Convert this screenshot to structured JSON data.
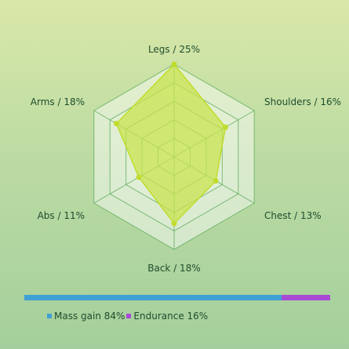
{
  "chart_data": {
    "type": "radar",
    "axes": [
      "Legs",
      "Shoulders",
      "Chest",
      "Back",
      "Abs",
      "Arms"
    ],
    "values": [
      25,
      16,
      13,
      18,
      11,
      18
    ],
    "axis_labels": [
      "Legs / 25%",
      "Shoulders / 16%",
      "Chest / 13%",
      "Back / 18%",
      "Abs / 11%",
      "Arms / 18%"
    ],
    "rmax": 25,
    "rings": 5,
    "colors": {
      "fill": "#c8e34a",
      "stroke": "#c0dc2c",
      "grid": "#5aaa5a"
    },
    "split": {
      "segments": [
        {
          "name": "Mass gain",
          "value": 84,
          "label": "Mass gain 84%",
          "color": "#3fa0d4"
        },
        {
          "name": "Endurance",
          "value": 16,
          "label": "Endurance 16%",
          "color": "#a84ad6"
        }
      ]
    }
  }
}
